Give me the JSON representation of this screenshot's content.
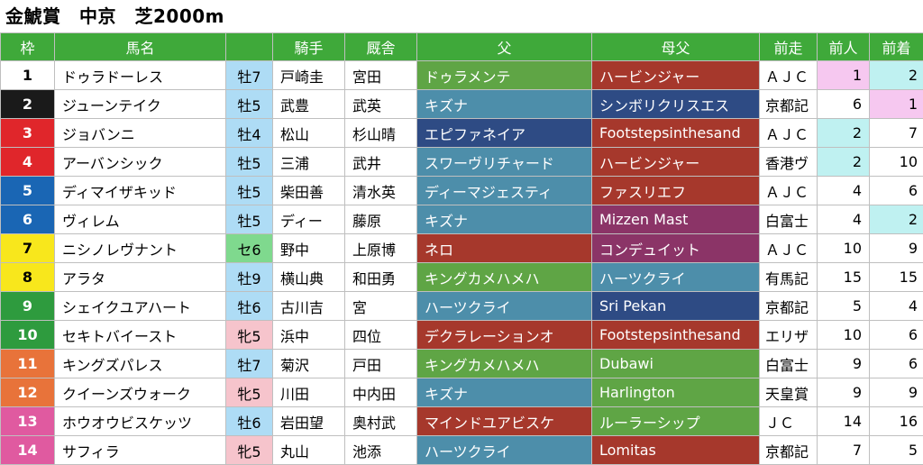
{
  "title": "金鯱賞　中京　芝2000m",
  "headers": [
    "枠",
    "馬名",
    "",
    "騎手",
    "厩舎",
    "父",
    "母父",
    "前走",
    "前人",
    "前着"
  ],
  "colors": {
    "header_bg": "#3fa93a",
    "sex_colt": "#aedcf5",
    "sex_filly": "#f6c4cc",
    "sex_gelding": "#7fd98e",
    "prev_pink": "#f6c8f0",
    "prev_cyan": "#bff1f1",
    "sire_green": "#5fa545",
    "sire_teal": "#4d8eaa",
    "sire_navy": "#2e4b84",
    "sire_red": "#a6382c",
    "bms_purple": "#8b3467"
  },
  "rows": [
    {
      "num": "1",
      "num_bg": "#ffffff",
      "num_fg": "#000000",
      "name": "ドゥラドーレス",
      "sex": "牡7",
      "sex_bg": "#aedcf5",
      "jockey": "戸崎圭",
      "trainer": "宮田",
      "sire": "ドゥラメンテ",
      "sire_bg": "#5fa545",
      "bms": "ハービンジャー",
      "bms_bg": "#a6382c",
      "prev": "ＡＪＣ",
      "prev_pop": "1",
      "prev_pop_bg": "#f6c8f0",
      "prev_fin": "2",
      "prev_fin_bg": "#bff1f1"
    },
    {
      "num": "2",
      "num_bg": "#1a1a1a",
      "num_fg": "#ffffff",
      "name": "ジューンテイク",
      "sex": "牡5",
      "sex_bg": "#aedcf5",
      "jockey": "武豊",
      "trainer": "武英",
      "sire": "キズナ",
      "sire_bg": "#4d8eaa",
      "bms": "シンボリクリスエス",
      "bms_bg": "#2e4b84",
      "prev": "京都記",
      "prev_pop": "6",
      "prev_pop_bg": "#ffffff",
      "prev_fin": "1",
      "prev_fin_bg": "#f6c8f0"
    },
    {
      "num": "3",
      "num_bg": "#e0262b",
      "num_fg": "#ffffff",
      "name": "ジョバンニ",
      "sex": "牡4",
      "sex_bg": "#aedcf5",
      "jockey": "松山",
      "trainer": "杉山晴",
      "sire": "エピファネイア",
      "sire_bg": "#2e4b84",
      "bms": "Footstepsinthesand",
      "bms_bg": "#a6382c",
      "prev": "ＡＪＣ",
      "prev_pop": "2",
      "prev_pop_bg": "#bff1f1",
      "prev_fin": "7",
      "prev_fin_bg": "#ffffff"
    },
    {
      "num": "4",
      "num_bg": "#e0262b",
      "num_fg": "#ffffff",
      "name": "アーバンシック",
      "sex": "牡5",
      "sex_bg": "#aedcf5",
      "jockey": "三浦",
      "trainer": "武井",
      "sire": "スワーヴリチャード",
      "sire_bg": "#4d8eaa",
      "bms": "ハービンジャー",
      "bms_bg": "#a6382c",
      "prev": "香港ヴ",
      "prev_pop": "2",
      "prev_pop_bg": "#bff1f1",
      "prev_fin": "10",
      "prev_fin_bg": "#ffffff"
    },
    {
      "num": "5",
      "num_bg": "#1a66b4",
      "num_fg": "#ffffff",
      "name": "ディマイザキッド",
      "sex": "牡5",
      "sex_bg": "#aedcf5",
      "jockey": "柴田善",
      "trainer": "清水英",
      "sire": "ディーマジェスティ",
      "sire_bg": "#4d8eaa",
      "bms": "ファスリエフ",
      "bms_bg": "#a6382c",
      "prev": "ＡＪＣ",
      "prev_pop": "4",
      "prev_pop_bg": "#ffffff",
      "prev_fin": "6",
      "prev_fin_bg": "#ffffff"
    },
    {
      "num": "6",
      "num_bg": "#1a66b4",
      "num_fg": "#ffffff",
      "name": "ヴィレム",
      "sex": "牡5",
      "sex_bg": "#aedcf5",
      "jockey": "ディー",
      "trainer": "藤原",
      "sire": "キズナ",
      "sire_bg": "#4d8eaa",
      "bms": "Mizzen Mast",
      "bms_bg": "#8b3467",
      "prev": "白富士",
      "prev_pop": "4",
      "prev_pop_bg": "#ffffff",
      "prev_fin": "2",
      "prev_fin_bg": "#bff1f1"
    },
    {
      "num": "7",
      "num_bg": "#f8e71c",
      "num_fg": "#000000",
      "name": "ニシノレヴナント",
      "sex": "セ6",
      "sex_bg": "#7fd98e",
      "jockey": "野中",
      "trainer": "上原博",
      "sire": "ネロ",
      "sire_bg": "#a6382c",
      "bms": "コンデュイット",
      "bms_bg": "#8b3467",
      "prev": "ＡＪＣ",
      "prev_pop": "10",
      "prev_pop_bg": "#ffffff",
      "prev_fin": "9",
      "prev_fin_bg": "#ffffff"
    },
    {
      "num": "8",
      "num_bg": "#f8e71c",
      "num_fg": "#000000",
      "name": "アラタ",
      "sex": "牡9",
      "sex_bg": "#aedcf5",
      "jockey": "横山典",
      "trainer": "和田勇",
      "sire": "キングカメハメハ",
      "sire_bg": "#5fa545",
      "bms": "ハーツクライ",
      "bms_bg": "#4d8eaa",
      "prev": "有馬記",
      "prev_pop": "15",
      "prev_pop_bg": "#ffffff",
      "prev_fin": "15",
      "prev_fin_bg": "#ffffff"
    },
    {
      "num": "9",
      "num_bg": "#2e9b3e",
      "num_fg": "#ffffff",
      "name": "シェイクユアハート",
      "sex": "牡6",
      "sex_bg": "#aedcf5",
      "jockey": "古川吉",
      "trainer": "宮",
      "sire": "ハーツクライ",
      "sire_bg": "#4d8eaa",
      "bms": "Sri Pekan",
      "bms_bg": "#2e4b84",
      "prev": "京都記",
      "prev_pop": "5",
      "prev_pop_bg": "#ffffff",
      "prev_fin": "4",
      "prev_fin_bg": "#ffffff"
    },
    {
      "num": "10",
      "num_bg": "#2e9b3e",
      "num_fg": "#ffffff",
      "name": "セキトバイースト",
      "sex": "牝5",
      "sex_bg": "#f6c4cc",
      "jockey": "浜中",
      "trainer": "四位",
      "sire": "デクラレーションオ",
      "sire_bg": "#a6382c",
      "bms": "Footstepsinthesand",
      "bms_bg": "#a6382c",
      "prev": "エリザ",
      "prev_pop": "10",
      "prev_pop_bg": "#ffffff",
      "prev_fin": "6",
      "prev_fin_bg": "#ffffff"
    },
    {
      "num": "11",
      "num_bg": "#e8733a",
      "num_fg": "#ffffff",
      "name": "キングズパレス",
      "sex": "牡7",
      "sex_bg": "#aedcf5",
      "jockey": "菊沢",
      "trainer": "戸田",
      "sire": "キングカメハメハ",
      "sire_bg": "#5fa545",
      "bms": "Dubawi",
      "bms_bg": "#5fa545",
      "prev": "白富士",
      "prev_pop": "9",
      "prev_pop_bg": "#ffffff",
      "prev_fin": "6",
      "prev_fin_bg": "#ffffff"
    },
    {
      "num": "12",
      "num_bg": "#e8733a",
      "num_fg": "#ffffff",
      "name": "クイーンズウォーク",
      "sex": "牝5",
      "sex_bg": "#f6c4cc",
      "jockey": "川田",
      "trainer": "中内田",
      "sire": "キズナ",
      "sire_bg": "#4d8eaa",
      "bms": "Harlington",
      "bms_bg": "#5fa545",
      "prev": "天皇賞",
      "prev_pop": "9",
      "prev_pop_bg": "#ffffff",
      "prev_fin": "9",
      "prev_fin_bg": "#ffffff"
    },
    {
      "num": "13",
      "num_bg": "#e05aa0",
      "num_fg": "#ffffff",
      "name": "ホウオウビスケッツ",
      "sex": "牡6",
      "sex_bg": "#aedcf5",
      "jockey": "岩田望",
      "trainer": "奥村武",
      "sire": "マインドユアビスケ",
      "sire_bg": "#a6382c",
      "bms": "ルーラーシップ",
      "bms_bg": "#5fa545",
      "prev": "ＪＣ",
      "prev_pop": "14",
      "prev_pop_bg": "#ffffff",
      "prev_fin": "16",
      "prev_fin_bg": "#ffffff"
    },
    {
      "num": "14",
      "num_bg": "#e05aa0",
      "num_fg": "#ffffff",
      "name": "サフィラ",
      "sex": "牝5",
      "sex_bg": "#f6c4cc",
      "jockey": "丸山",
      "trainer": "池添",
      "sire": "ハーツクライ",
      "sire_bg": "#4d8eaa",
      "bms": "Lomitas",
      "bms_bg": "#a6382c",
      "prev": "京都記",
      "prev_pop": "7",
      "prev_pop_bg": "#ffffff",
      "prev_fin": "5",
      "prev_fin_bg": "#ffffff"
    }
  ]
}
